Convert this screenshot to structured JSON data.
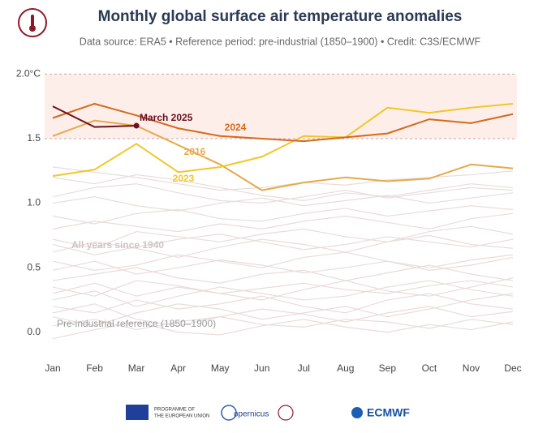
{
  "chart_data": {
    "type": "line",
    "title": "Monthly global surface air temperature anomalies",
    "subtitle": "Data source: ERA5 • Reference period: pre-industrial (1850–1900) • Credit: C3S/ECMWF",
    "categories": [
      "Jan",
      "Feb",
      "Mar",
      "Apr",
      "May",
      "Jun",
      "Jul",
      "Aug",
      "Sep",
      "Oct",
      "Nov",
      "Dec"
    ],
    "ylim": [
      -0.19,
      2.04
    ],
    "yticks": [
      {
        "value": 0,
        "label": "0.0"
      },
      0.5,
      {
        "value": 1,
        "label": "1.0"
      },
      1.5,
      {
        "value": 2,
        "label": "2.0°C"
      }
    ],
    "band": [
      1.5,
      2
    ],
    "band_color": "#fdeeea",
    "background_color": "#e8dcd9",
    "background_series": [
      [
        0.05,
        0.1,
        0.02,
        0.08,
        0.12,
        0.06,
        0.04,
        0.1,
        0.08,
        0.03,
        0.1,
        0.06
      ],
      [
        0.2,
        0.15,
        0.25,
        0.18,
        0.22,
        0.28,
        0.2,
        0.15,
        0.25,
        0.3,
        0.22,
        0.18
      ],
      [
        0.3,
        0.38,
        0.28,
        0.35,
        0.3,
        0.25,
        0.33,
        0.4,
        0.32,
        0.28,
        0.35,
        0.42
      ],
      [
        0.12,
        0.05,
        0.15,
        0.22,
        0.18,
        0.1,
        0.15,
        0.2,
        0.12,
        0.18,
        0.25,
        0.3
      ],
      [
        0.4,
        0.45,
        0.5,
        0.42,
        0.38,
        0.45,
        0.48,
        0.4,
        0.46,
        0.52,
        0.45,
        0.4
      ],
      [
        0.55,
        0.48,
        0.52,
        0.6,
        0.55,
        0.5,
        0.58,
        0.62,
        0.55,
        0.5,
        0.56,
        0.6
      ],
      [
        0.25,
        0.32,
        0.2,
        0.28,
        0.35,
        0.3,
        0.25,
        0.28,
        0.35,
        0.4,
        0.33,
        0.28
      ],
      [
        0.62,
        0.7,
        0.65,
        0.58,
        0.66,
        0.72,
        0.68,
        0.62,
        0.7,
        0.75,
        0.68,
        0.65
      ],
      [
        0.72,
        0.65,
        0.78,
        0.74,
        0.7,
        0.76,
        0.8,
        0.74,
        0.7,
        0.78,
        0.82,
        0.76
      ],
      [
        0.8,
        0.86,
        0.82,
        0.78,
        0.84,
        0.8,
        0.86,
        0.9,
        0.85,
        0.8,
        0.88,
        0.92
      ],
      [
        0.9,
        0.84,
        0.92,
        0.95,
        0.88,
        0.86,
        0.92,
        0.96,
        0.9,
        0.94,
        0.98,
        0.95
      ],
      [
        1.0,
        1.05,
        0.98,
        0.94,
        1.0,
        1.04,
        0.98,
        1.02,
        1.06,
        1.0,
        1.04,
        1.08
      ],
      [
        1.05,
        1.12,
        1.15,
        1.08,
        1.02,
        1.0,
        1.05,
        1.1,
        1.04,
        1.08,
        1.12,
        1.1
      ],
      [
        1.2,
        1.15,
        1.22,
        1.18,
        1.12,
        1.06,
        1.02,
        1.08,
        1.05,
        1.1,
        1.15,
        1.12
      ],
      [
        1.28,
        1.24,
        1.2,
        1.15,
        1.1,
        1.12,
        1.16,
        1.14,
        1.18,
        1.2,
        1.22,
        1.25
      ],
      [
        0.35,
        0.28,
        0.4,
        0.36,
        0.3,
        0.34,
        0.38,
        0.33,
        0.3,
        0.36,
        0.4,
        0.35
      ],
      [
        0.15,
        0.22,
        0.1,
        0.05,
        0.12,
        0.18,
        0.14,
        0.08,
        0.15,
        0.2,
        0.12,
        0.16
      ],
      [
        0.48,
        0.55,
        0.45,
        0.5,
        0.56,
        0.52,
        0.46,
        0.5,
        0.55,
        0.48,
        0.52,
        0.58
      ],
      [
        -0.05,
        0.02,
        0.08,
        0.0,
        -0.02,
        0.05,
        0.1,
        0.04,
        0.0,
        0.06,
        0.02,
        0.08
      ],
      [
        0.68,
        0.6,
        0.66,
        0.72,
        0.76,
        0.7,
        0.64,
        0.68,
        0.74,
        0.7,
        0.66,
        0.72
      ]
    ],
    "series": [
      {
        "name": "2016",
        "color": "#e7a94b",
        "values": [
          1.52,
          1.64,
          1.6,
          1.45,
          1.3,
          1.1,
          1.16,
          1.2,
          1.17,
          1.19,
          1.3,
          1.27
        ]
      },
      {
        "name": "2023",
        "color": "#f0c72a",
        "values": [
          1.21,
          1.26,
          1.46,
          1.24,
          1.28,
          1.36,
          1.52,
          1.51,
          1.74,
          1.7,
          1.74,
          1.77
        ]
      },
      {
        "name": "2024",
        "color": "#d4691d",
        "values": [
          1.66,
          1.77,
          1.68,
          1.58,
          1.52,
          1.5,
          1.48,
          1.51,
          1.54,
          1.65,
          1.62,
          1.69
        ]
      },
      {
        "name": "March 2025",
        "color": "#6b1020",
        "values": [
          1.75,
          1.59,
          1.6,
          null,
          null,
          null,
          null,
          null,
          null,
          null,
          null,
          null
        ]
      }
    ],
    "annotations": [
      "All years since 1940",
      "Pre-industrial reference (1850–1900)"
    ],
    "footer": [
      "PROGRAMME OF",
      "THE EUROPEAN UNION",
      "opernicus",
      "ECMWF"
    ]
  }
}
